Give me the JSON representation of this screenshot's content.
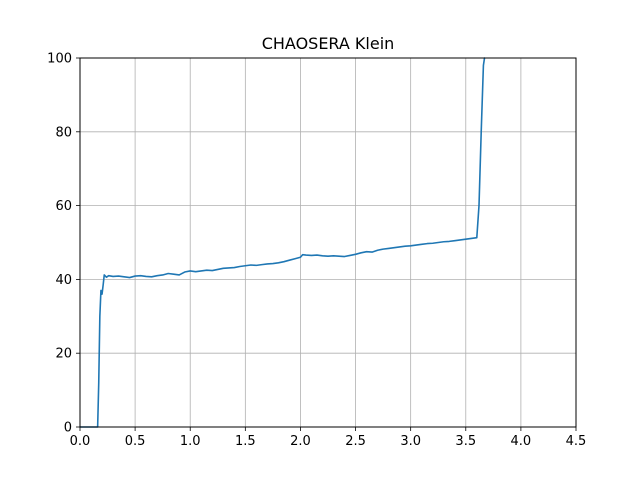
{
  "chart_data": {
    "type": "line",
    "title": "CHAOSERA Klein",
    "xlabel": "",
    "ylabel": "",
    "xlim": [
      0,
      4.5
    ],
    "ylim": [
      0,
      100
    ],
    "xticks": [
      0.0,
      0.5,
      1.0,
      1.5,
      2.0,
      2.5,
      3.0,
      3.5,
      4.0,
      4.5
    ],
    "xtick_labels": [
      "0.0",
      "0.5",
      "1.0",
      "1.5",
      "2.0",
      "2.5",
      "3.0",
      "3.5",
      "4.0",
      "4.5"
    ],
    "yticks": [
      0,
      20,
      40,
      60,
      80,
      100
    ],
    "ytick_labels": [
      "0",
      "20",
      "40",
      "60",
      "80",
      "100"
    ],
    "grid": true,
    "legend": "none",
    "series": [
      {
        "color": "#1f77b4",
        "x": [
          0.0,
          0.15,
          0.16,
          0.17,
          0.18,
          0.19,
          0.2,
          0.21,
          0.22,
          0.24,
          0.26,
          0.3,
          0.35,
          0.4,
          0.45,
          0.5,
          0.55,
          0.6,
          0.65,
          0.7,
          0.75,
          0.8,
          0.85,
          0.9,
          0.95,
          1.0,
          1.05,
          1.1,
          1.15,
          1.2,
          1.25,
          1.3,
          1.35,
          1.4,
          1.45,
          1.5,
          1.55,
          1.6,
          1.65,
          1.7,
          1.75,
          1.8,
          1.85,
          1.9,
          1.95,
          2.0,
          2.02,
          2.05,
          2.1,
          2.15,
          2.2,
          2.25,
          2.3,
          2.35,
          2.4,
          2.45,
          2.5,
          2.55,
          2.6,
          2.65,
          2.7,
          2.75,
          2.8,
          2.85,
          2.9,
          2.95,
          3.0,
          3.05,
          3.1,
          3.15,
          3.2,
          3.25,
          3.3,
          3.35,
          3.4,
          3.45,
          3.5,
          3.55,
          3.6,
          3.62,
          3.64,
          3.66,
          3.67
        ],
        "y": [
          0,
          0,
          0,
          12,
          30,
          37,
          36,
          38.5,
          41.2,
          40.6,
          41,
          40.8,
          40.9,
          40.7,
          40.5,
          40.9,
          41,
          40.8,
          40.7,
          41,
          41.2,
          41.6,
          41.4,
          41.2,
          42,
          42.3,
          42.1,
          42.3,
          42.5,
          42.4,
          42.7,
          43,
          43.1,
          43.2,
          43.5,
          43.7,
          43.9,
          43.8,
          44,
          44.2,
          44.3,
          44.5,
          44.8,
          45.2,
          45.6,
          46,
          46.7,
          46.6,
          46.5,
          46.6,
          46.4,
          46.3,
          46.4,
          46.3,
          46.2,
          46.5,
          46.8,
          47.2,
          47.5,
          47.4,
          47.9,
          48.2,
          48.4,
          48.6,
          48.8,
          49,
          49.1,
          49.3,
          49.5,
          49.7,
          49.8,
          50,
          50.2,
          50.3,
          50.5,
          50.7,
          50.9,
          51.1,
          51.3,
          60,
          80,
          98,
          100
        ]
      }
    ]
  }
}
